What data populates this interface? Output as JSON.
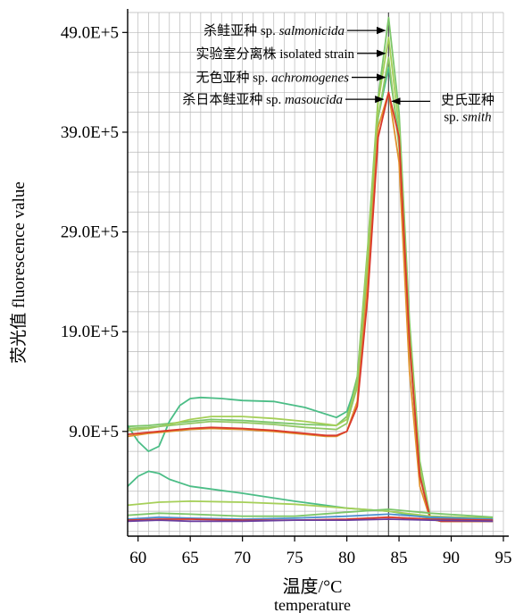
{
  "chart_data": {
    "type": "line",
    "xlabel": "温度/°C",
    "xlabel_en": "temperature",
    "ylabel": "荧光值  fluorescence value",
    "xlim": [
      59,
      95
    ],
    "ylim": [
      -1.5,
      51
    ],
    "x_ticks": [
      60,
      65,
      70,
      75,
      80,
      85,
      90,
      95
    ],
    "x_tick_labels": [
      "60",
      "65",
      "70",
      "75",
      "80",
      "85",
      "90",
      "95"
    ],
    "y_ticks": [
      9,
      19,
      29,
      39,
      49
    ],
    "y_tick_labels": [
      "9.0E+5",
      "19.0E+5",
      "29.0E+5",
      "39.0E+5",
      "49.0E+5"
    ],
    "y_units": "×10^5",
    "grid": true,
    "annotations": [
      {
        "text": "杀鲑亚种 sp. salmonicida",
        "x": 84.0,
        "y": 49.2
      },
      {
        "text": "实验室分离株 isolated strain",
        "x": 83.9,
        "y": 46.9
      },
      {
        "text": "无色亚种 sp. achromogenes",
        "x": 83.8,
        "y": 44.5
      },
      {
        "text": "杀日本鲑亚种 sp. masoucida",
        "x": 83.5,
        "y": 42.3
      },
      {
        "text_line1": "史氏亚种",
        "text_line2": "sp. smith",
        "x": 84.2,
        "y": 42.1
      }
    ],
    "series": [
      {
        "color": "#7cc66a",
        "x": [
          59,
          61,
          63,
          65,
          67,
          70,
          73,
          76,
          79,
          80,
          81,
          82,
          83,
          84,
          85,
          86,
          87,
          88,
          89,
          90,
          92,
          94
        ],
        "y": [
          9.5,
          9.6,
          9.8,
          10.0,
          10.2,
          10.1,
          9.9,
          9.7,
          9.6,
          10.5,
          14.5,
          27.5,
          42.5,
          50.5,
          41.0,
          20.0,
          6.0,
          0.4,
          0.0,
          0.0,
          0.0,
          0.0
        ]
      },
      {
        "color": "#4bbd86",
        "x": [
          59,
          60,
          61,
          62,
          63,
          64,
          65,
          66,
          68,
          70,
          73,
          76,
          79,
          80,
          81,
          82,
          83,
          84,
          85,
          86,
          87,
          88,
          89,
          90,
          92,
          94
        ],
        "y": [
          9.6,
          8.0,
          7.0,
          7.5,
          10.0,
          11.6,
          12.3,
          12.4,
          12.3,
          12.1,
          12.0,
          11.4,
          10.4,
          11.0,
          14.0,
          26.0,
          40.5,
          45.5,
          38.5,
          18.0,
          4.5,
          0.3,
          0.0,
          0.0,
          0.0,
          0.0
        ]
      },
      {
        "color": "#a5cf58",
        "x": [
          59,
          61,
          63,
          65,
          67,
          70,
          73,
          76,
          79,
          80,
          81,
          82,
          83,
          84,
          85,
          86,
          87,
          88,
          89,
          90,
          92,
          94
        ],
        "y": [
          9.1,
          9.3,
          9.7,
          10.2,
          10.5,
          10.5,
          10.3,
          10.0,
          9.6,
          10.2,
          14.0,
          27.0,
          42.0,
          48.5,
          39.5,
          19.0,
          5.5,
          0.3,
          0.0,
          0.0,
          0.0,
          0.0
        ]
      },
      {
        "color": "#92c865",
        "x": [
          59,
          61,
          63,
          65,
          67,
          70,
          73,
          76,
          79,
          80,
          81,
          82,
          83,
          84,
          85,
          86,
          87,
          88,
          89,
          90,
          92,
          94
        ],
        "y": [
          9.3,
          9.4,
          9.6,
          9.8,
          10.0,
          9.9,
          9.7,
          9.4,
          9.2,
          9.8,
          13.5,
          25.5,
          40.5,
          46.5,
          37.5,
          17.5,
          5.0,
          0.2,
          0.0,
          0.0,
          0.0,
          0.0
        ]
      },
      {
        "color": "#e0922e",
        "x": [
          59,
          61,
          63,
          65,
          67,
          70,
          73,
          76,
          78,
          79,
          80,
          81,
          82,
          83,
          84,
          85,
          86,
          87,
          88,
          89,
          90,
          92,
          94
        ],
        "y": [
          8.5,
          8.8,
          9.0,
          9.2,
          9.3,
          9.2,
          9.0,
          8.7,
          8.5,
          8.5,
          9.0,
          12.0,
          24.0,
          39.5,
          43.0,
          36.0,
          15.0,
          3.5,
          0.2,
          0.0,
          0.0,
          0.0,
          0.0
        ]
      },
      {
        "color": "#d9392c",
        "x": [
          59,
          61,
          63,
          65,
          67,
          70,
          73,
          76,
          78,
          79,
          80,
          81,
          82,
          83,
          84,
          85,
          86,
          87,
          88,
          89,
          90,
          92,
          94
        ],
        "y": [
          8.7,
          8.9,
          9.1,
          9.3,
          9.4,
          9.3,
          9.1,
          8.8,
          8.6,
          8.6,
          9.0,
          11.5,
          22.5,
          38.5,
          43.0,
          38.5,
          18.0,
          4.5,
          0.3,
          0.0,
          0.0,
          0.0,
          0.0
        ]
      },
      {
        "color": "#4bbd86",
        "x": [
          59,
          60,
          61,
          62,
          63,
          65,
          70,
          75,
          80,
          84,
          88,
          94
        ],
        "y": [
          3.5,
          4.5,
          5.0,
          4.8,
          4.2,
          3.5,
          2.8,
          2.0,
          1.3,
          1.0,
          0.3,
          0.2
        ]
      },
      {
        "color": "#a5cf58",
        "x": [
          59,
          62,
          65,
          70,
          75,
          80,
          84,
          88,
          94
        ],
        "y": [
          1.6,
          1.9,
          2.0,
          1.9,
          1.7,
          1.3,
          1.0,
          0.5,
          0.3
        ]
      },
      {
        "color": "#7cc66a",
        "x": [
          59,
          62,
          65,
          70,
          75,
          80,
          84,
          88,
          94
        ],
        "y": [
          0.6,
          0.8,
          0.7,
          0.5,
          0.5,
          0.9,
          1.2,
          0.8,
          0.4
        ]
      },
      {
        "color": "#4c8fcf",
        "x": [
          59,
          62,
          65,
          70,
          75,
          80,
          84,
          88,
          94
        ],
        "y": [
          0.2,
          0.4,
          0.3,
          0.2,
          0.3,
          0.5,
          0.7,
          0.4,
          0.2
        ]
      },
      {
        "color": "#d9392c",
        "x": [
          59,
          62,
          65,
          70,
          75,
          80,
          84,
          88,
          94
        ],
        "y": [
          0.1,
          0.2,
          0.2,
          0.1,
          0.1,
          0.2,
          0.4,
          0.2,
          0.1
        ]
      },
      {
        "color": "#6a3fa0",
        "x": [
          59,
          62,
          65,
          70,
          75,
          80,
          84,
          88,
          94
        ],
        "y": [
          0.0,
          0.1,
          0.0,
          0.0,
          0.1,
          0.1,
          0.2,
          0.1,
          0.0
        ]
      }
    ]
  }
}
